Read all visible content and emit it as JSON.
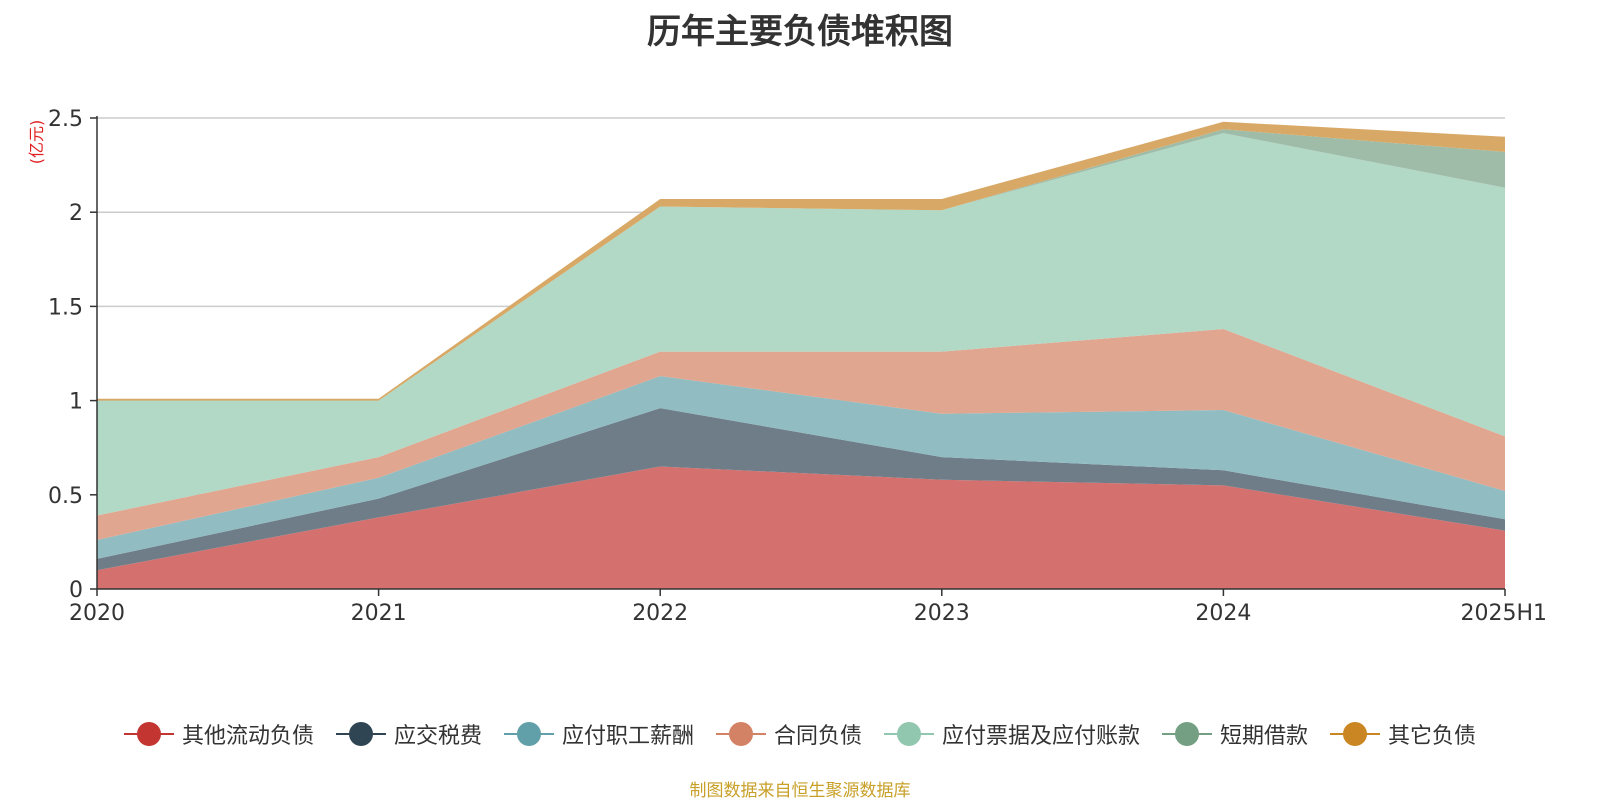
{
  "chart_data": {
    "type": "area",
    "stacked": true,
    "title": "历年主要负债堆积图",
    "unit_label": "(亿元)",
    "categories": [
      "2020",
      "2021",
      "2022",
      "2023",
      "2024",
      "2025H1"
    ],
    "ylim": [
      0,
      2.5
    ],
    "yticks": [
      0,
      0.5,
      1,
      1.5,
      2,
      2.5
    ],
    "ytick_labels": [
      "0",
      "0.5",
      "1",
      "1.5",
      "2",
      "2.5"
    ],
    "grid": true,
    "legend_position": "bottom",
    "series": [
      {
        "name": "其他流动负债",
        "color": "#c23531",
        "fill": "#d4706e",
        "values": [
          0.1,
          0.38,
          0.65,
          0.58,
          0.55,
          0.31
        ]
      },
      {
        "name": "应交税费",
        "color": "#2f4554",
        "fill": "#6e7d88",
        "values": [
          0.06,
          0.1,
          0.31,
          0.12,
          0.08,
          0.06
        ]
      },
      {
        "name": "应付职工薪酬",
        "color": "#61a0a8",
        "fill": "#90bcc2",
        "values": [
          0.1,
          0.11,
          0.17,
          0.23,
          0.32,
          0.15
        ]
      },
      {
        "name": "合同负债",
        "color": "#d48265",
        "fill": "#e0a690",
        "values": [
          0.13,
          0.11,
          0.13,
          0.33,
          0.43,
          0.29
        ]
      },
      {
        "name": "应付票据及应付账款",
        "color": "#91c7ae",
        "fill": "#b2d8c6",
        "values": [
          0.61,
          0.3,
          0.77,
          0.75,
          1.04,
          1.32
        ]
      },
      {
        "name": "短期借款",
        "color": "#749f83",
        "fill": "#9fbca9",
        "values": [
          0.0,
          0.0,
          0.0,
          0.0,
          0.02,
          0.19
        ]
      },
      {
        "name": "其它负债",
        "color": "#ca8622",
        "fill": "#d8a966",
        "values": [
          0.01,
          0.01,
          0.04,
          0.06,
          0.04,
          0.08
        ]
      }
    ]
  },
  "source_note": "制图数据来自恒生聚源数据库"
}
